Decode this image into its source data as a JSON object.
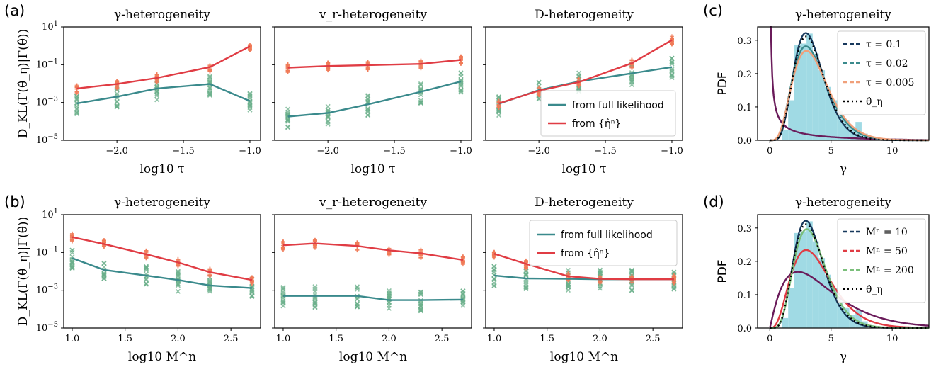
{
  "figure": {
    "panel_labels": [
      "(a)",
      "(b)",
      "(c)",
      "(d)"
    ],
    "kl_ylabel": "D_KL(Γ(θ̂_η)|Γ(θ̂))",
    "kl_yticks": [
      "10^1",
      "10^-1",
      "10^-3",
      "10^-5"
    ],
    "pdf_ylabel": "PDF",
    "row_a_xlabel": "log10 τ",
    "row_b_xlabel": "log10 M^n",
    "pdf_xlabel": "γ",
    "row_a_xticks": [
      "−2.0",
      "−1.5",
      "−1.0"
    ],
    "row_b_xticks": [
      "1.0",
      "1.5",
      "2.0",
      "2.5"
    ],
    "pdf_xticks": [
      "0",
      "5",
      "10"
    ],
    "pdf_yticks": [
      "0.0",
      "0.1",
      "0.2",
      "0.3"
    ],
    "kl_legend": [
      "from full likelihood",
      "from {η̂ⁿ}"
    ],
    "pdf_legend_c": [
      "τ = 0.1",
      "τ = 0.02",
      "τ = 0.005",
      "θ̂_η"
    ],
    "pdf_legend_d": [
      "Mⁿ = 10",
      "Mⁿ = 50",
      "Mⁿ = 200",
      "θ̂_η"
    ],
    "colors": {
      "full_likelihood": "#3a8a8c",
      "from_eta": "#e03c44",
      "full_markers": "#6aaf8a",
      "eta_markers": "#f07a58",
      "hist": "#8fd3df",
      "dark_purple": "#6a1b5a",
      "dark_blue": "#17385c",
      "teal": "#3a8a8c",
      "red": "#e03c44",
      "peach": "#f0a07a",
      "green": "#7bbf7b"
    }
  },
  "chart_data": [
    {
      "type": "line",
      "panel": "a",
      "title": "γ-heterogeneity",
      "xlabel": "log10 τ",
      "ylabel": "D_KL",
      "yscale": "log",
      "ylim": [
        1e-05,
        10
      ],
      "xlim": [
        -2.4,
        -0.92
      ],
      "x": [
        -2.301,
        -2.0,
        -1.699,
        -1.301,
        -1.0
      ],
      "series": [
        {
          "name": "from full likelihood",
          "values": [
            0.0009,
            0.002,
            0.0055,
            0.0095,
            0.0012
          ]
        },
        {
          "name": "from {η̂ⁿ}",
          "values": [
            0.0055,
            0.0095,
            0.02,
            0.075,
            0.95
          ]
        }
      ]
    },
    {
      "type": "line",
      "panel": "a",
      "title": "v_r-heterogeneity",
      "xlabel": "log10 τ",
      "yscale": "log",
      "ylim": [
        1e-05,
        10
      ],
      "xlim": [
        -2.4,
        -0.92
      ],
      "x": [
        -2.301,
        -2.0,
        -1.699,
        -1.301,
        -1.0
      ],
      "series": [
        {
          "name": "from full likelihood",
          "values": [
            0.00018,
            0.00028,
            0.0008,
            0.0037,
            0.013
          ]
        },
        {
          "name": "from {η̂ⁿ}",
          "values": [
            0.07,
            0.085,
            0.095,
            0.11,
            0.18
          ]
        }
      ]
    },
    {
      "type": "line",
      "panel": "a",
      "title": "D-heterogeneity",
      "xlabel": "log10 τ",
      "yscale": "log",
      "ylim": [
        1e-05,
        10
      ],
      "xlim": [
        -2.4,
        -0.92
      ],
      "x": [
        -2.301,
        -2.0,
        -1.699,
        -1.301,
        -1.0
      ],
      "series": [
        {
          "name": "from full likelihood",
          "values": [
            0.00085,
            0.0045,
            0.013,
            0.035,
            0.075
          ]
        },
        {
          "name": "from {η̂ⁿ}",
          "values": [
            0.0009,
            0.0042,
            0.012,
            0.12,
            2.0
          ]
        }
      ]
    },
    {
      "type": "line",
      "panel": "b",
      "title": "γ-heterogeneity",
      "xlabel": "log10 M^n",
      "yscale": "log",
      "ylim": [
        1e-05,
        10
      ],
      "xlim": [
        0.92,
        2.78
      ],
      "x": [
        1.0,
        1.301,
        1.699,
        2.0,
        2.301,
        2.699
      ],
      "series": [
        {
          "name": "from full likelihood",
          "values": [
            0.05,
            0.012,
            0.006,
            0.0035,
            0.0018,
            0.0013
          ]
        },
        {
          "name": "from {η̂ⁿ}",
          "values": [
            0.65,
            0.28,
            0.08,
            0.03,
            0.009,
            0.0035
          ]
        }
      ]
    },
    {
      "type": "line",
      "panel": "b",
      "title": "v_r-heterogeneity",
      "xlabel": "log10 M^n",
      "yscale": "log",
      "ylim": [
        1e-05,
        10
      ],
      "xlim": [
        0.92,
        2.78
      ],
      "x": [
        1.0,
        1.301,
        1.699,
        2.0,
        2.301,
        2.699
      ],
      "series": [
        {
          "name": "from full likelihood",
          "values": [
            0.0005,
            0.0005,
            0.0005,
            0.0003,
            0.0003,
            0.00032
          ]
        },
        {
          "name": "from {η̂ⁿ}",
          "values": [
            0.24,
            0.3,
            0.22,
            0.13,
            0.09,
            0.04
          ]
        }
      ]
    },
    {
      "type": "line",
      "panel": "b",
      "title": "D-heterogeneity",
      "xlabel": "log10 M^n",
      "yscale": "log",
      "ylim": [
        1e-05,
        10
      ],
      "xlim": [
        0.92,
        2.78
      ],
      "x": [
        1.0,
        1.301,
        1.699,
        2.0,
        2.301,
        2.699
      ],
      "series": [
        {
          "name": "from full likelihood",
          "values": [
            0.006,
            0.0042,
            0.004,
            0.0038,
            0.0038,
            0.0038
          ]
        },
        {
          "name": "from {η̂ⁿ}",
          "values": [
            0.085,
            0.025,
            0.0055,
            0.004,
            0.0038,
            0.0038
          ]
        }
      ]
    },
    {
      "type": "line",
      "panel": "c",
      "title": "γ-heterogeneity",
      "xlabel": "γ",
      "ylabel": "PDF",
      "xlim": [
        -1,
        13
      ],
      "ylim": [
        0,
        0.34
      ],
      "hist": {
        "bin_centers": [
          1.25,
          1.75,
          2.25,
          2.75,
          3.25,
          3.75,
          4.25,
          4.75,
          5.25,
          5.75,
          6.25,
          6.75,
          7.25,
          7.75
        ],
        "density": [
          0.03,
          0.12,
          0.285,
          0.29,
          0.32,
          0.26,
          0.21,
          0.16,
          0.12,
          0.09,
          0.06,
          0.04,
          0.055,
          0.02
        ]
      },
      "series": [
        {
          "name": "τ = 0.1",
          "shape": 2.2,
          "mean": 0.03,
          "note": "dark purple decaying curve"
        },
        {
          "name": "τ = 0.02",
          "shape": 5.5,
          "mean": 3.6
        },
        {
          "name": "τ = 0.005",
          "shape": 5.2,
          "mean": 3.7
        },
        {
          "name": "θ̂_η",
          "shape": 6.5,
          "mean": 3.5
        }
      ]
    },
    {
      "type": "line",
      "panel": "d",
      "title": "γ-heterogeneity",
      "xlabel": "γ",
      "ylabel": "PDF",
      "xlim": [
        -1,
        13
      ],
      "ylim": [
        0,
        0.34
      ],
      "hist": {
        "bin_centers": [
          1.25,
          1.75,
          2.25,
          2.75,
          3.25,
          3.75,
          4.25,
          4.75,
          5.25,
          5.75,
          6.25,
          6.75,
          7.25,
          7.75
        ],
        "density": [
          0.03,
          0.12,
          0.285,
          0.29,
          0.32,
          0.26,
          0.21,
          0.16,
          0.12,
          0.09,
          0.06,
          0.04,
          0.055,
          0.02
        ]
      },
      "series": [
        {
          "name": "Mⁿ = 10",
          "shape": 2.1,
          "mean": 4.4
        },
        {
          "name": "Mⁿ = 50",
          "shape": 4.2,
          "mean": 3.9
        },
        {
          "name": "Mⁿ = 200",
          "shape": 6.2,
          "mean": 3.6
        },
        {
          "name": "θ̂_η",
          "shape": 6.5,
          "mean": 3.5
        }
      ]
    }
  ]
}
